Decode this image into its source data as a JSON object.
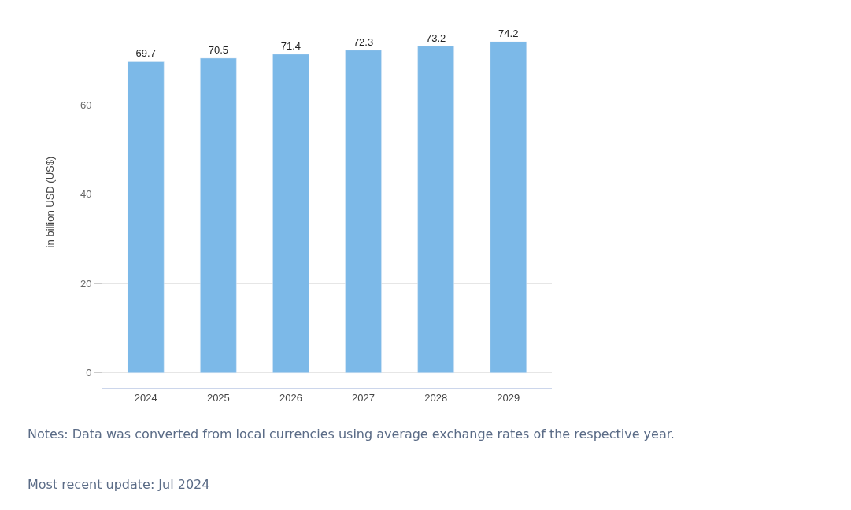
{
  "chart_data": {
    "type": "bar",
    "ylabel": "in billion USD (US$)",
    "categories": [
      "2024",
      "2025",
      "2026",
      "2027",
      "2028",
      "2029"
    ],
    "values": [
      69.7,
      70.5,
      71.4,
      72.3,
      73.2,
      74.2
    ],
    "color": "#7cb9e8",
    "data_labels": true,
    "ylim": [
      -3.4,
      80
    ],
    "yticks": [
      0,
      20,
      40,
      60
    ],
    "grid": "y",
    "legend": false,
    "annotations": [
      "Notes: Data was converted from local currencies using average exchange rates of the respective year.",
      "Most recent update: Jul 2024"
    ]
  }
}
